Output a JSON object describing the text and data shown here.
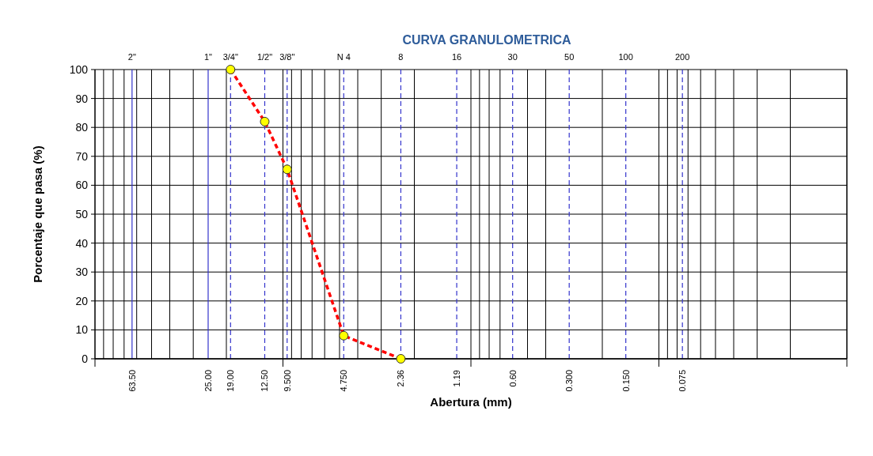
{
  "chart_data": {
    "type": "line",
    "title": "CURVA GRANULOMETRICA",
    "xlabel": "Abertura (mm)",
    "ylabel": "Porcentaje que pasa (%)",
    "log": "x",
    "grid": true,
    "xlim": [
      100,
      0.01
    ],
    "ylim": [
      0,
      100
    ],
    "yticks": [
      0,
      10,
      20,
      30,
      40,
      50,
      60,
      70,
      80,
      90,
      100
    ],
    "xticks": [
      {
        "value": 100,
        "label": null
      },
      {
        "value": 90,
        "label": null
      },
      {
        "value": 80,
        "label": null
      },
      {
        "value": 70,
        "label": null
      },
      {
        "value": 60,
        "label": null
      },
      {
        "value": 50,
        "label": null
      },
      {
        "value": 40,
        "label": null
      },
      {
        "value": 30,
        "label": null
      },
      {
        "value": 20,
        "label": null
      },
      {
        "value": 10,
        "label": null
      },
      {
        "value": 9,
        "label": null
      },
      {
        "value": 8,
        "label": null
      },
      {
        "value": 7,
        "label": null
      },
      {
        "value": 6,
        "label": null
      },
      {
        "value": 5,
        "label": null
      },
      {
        "value": 4,
        "label": null
      },
      {
        "value": 3,
        "label": null
      },
      {
        "value": 2,
        "label": null
      },
      {
        "value": 1,
        "label": null
      },
      {
        "value": 0.9,
        "label": null
      },
      {
        "value": 0.8,
        "label": null
      },
      {
        "value": 0.7,
        "label": null
      },
      {
        "value": 0.5,
        "label": null
      },
      {
        "value": 0.4,
        "label": null
      },
      {
        "value": 0.2,
        "label": null
      },
      {
        "value": 0.1,
        "label": null
      },
      {
        "value": 0.09,
        "label": null
      },
      {
        "value": 0.08,
        "label": null
      },
      {
        "value": 0.07,
        "label": null
      },
      {
        "value": 0.06,
        "label": null
      },
      {
        "value": 0.05,
        "label": null
      },
      {
        "value": 0.04,
        "label": null
      },
      {
        "value": 0.03,
        "label": null
      },
      {
        "value": 0.02,
        "label": null
      },
      {
        "value": 0.01,
        "label": null
      }
    ],
    "ref_lines": [
      {
        "axis": "x",
        "value": 63.5,
        "label": "63.50",
        "color": "#3333cc",
        "line_style": "solid"
      },
      {
        "axis": "x",
        "value": 25,
        "label": "25.00",
        "color": "#3333cc",
        "line_style": "solid"
      },
      {
        "axis": "x",
        "value": 19,
        "label": "19.00",
        "color": "#3333cc",
        "line_style": "dashed"
      },
      {
        "axis": "x",
        "value": 12.5,
        "label": "12.50",
        "color": "#3333cc",
        "line_style": "dashed"
      },
      {
        "axis": "x",
        "value": 9.5,
        "label": "9.500",
        "color": "#3333cc",
        "line_style": "dashed"
      },
      {
        "axis": "x",
        "value": 4.75,
        "label": "4.750",
        "color": "#3333cc",
        "line_style": "dashed"
      },
      {
        "axis": "x",
        "value": 2.36,
        "label": "2.36",
        "color": "#3333cc",
        "line_style": "dashed"
      },
      {
        "axis": "x",
        "value": 1.19,
        "label": "1.19",
        "color": "#3333cc",
        "line_style": "dashed"
      },
      {
        "axis": "x",
        "value": 0.6,
        "label": "0.60",
        "color": "#3333cc",
        "line_style": "dashed"
      },
      {
        "axis": "x",
        "value": 0.3,
        "label": "0.300",
        "color": "#3333cc",
        "line_style": "dashed"
      },
      {
        "axis": "x",
        "value": 0.15,
        "label": "0.150",
        "color": "#3333cc",
        "line_style": "dashed"
      },
      {
        "axis": "x",
        "value": 0.075,
        "label": "0.075",
        "color": "#3333cc",
        "line_style": "dashed"
      }
    ],
    "annotations": [
      "2\"",
      "1\"",
      "3/4\"",
      "1/2\"",
      "3/8\"",
      "N 4",
      "8",
      "16",
      "30",
      "50",
      "100",
      "200"
    ],
    "series": [
      {
        "color": "#ff0000",
        "line_style": "dashed",
        "marker": "none",
        "x": [
          19,
          12.5,
          9.5,
          4.75,
          2.36
        ],
        "values": [
          100,
          82,
          65.5,
          8,
          0
        ]
      },
      {
        "type": "scatter",
        "color": "#ffff00",
        "marker": "circle",
        "x": [
          19,
          12.5,
          9.5,
          4.75,
          2.36
        ],
        "values": [
          100,
          82,
          65.5,
          8,
          0
        ]
      }
    ]
  }
}
